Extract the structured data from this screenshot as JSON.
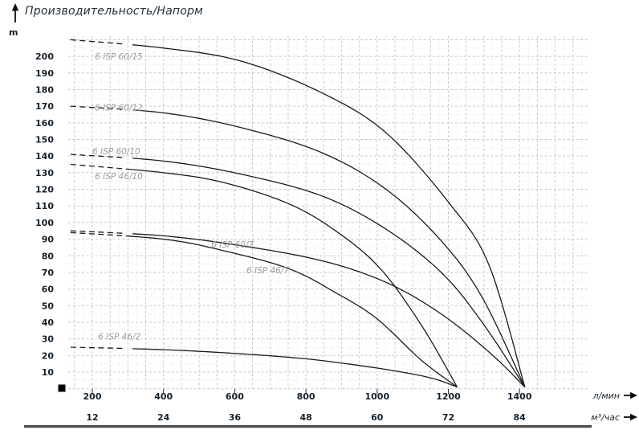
{
  "title": "Производительность/Напорм",
  "y_axis_unit": "m",
  "x_axis_unit_primary": "л/мин",
  "x_axis_unit_secondary": "м³/час",
  "chart_data": {
    "type": "line",
    "title": "Производительность/Напорм",
    "ylabel": "m",
    "xlabel_primary": "л/мин",
    "xlabel_secondary": "м³/час",
    "y_ticks": [
      10,
      20,
      30,
      40,
      50,
      60,
      70,
      80,
      90,
      100,
      110,
      120,
      130,
      140,
      150,
      160,
      170,
      180,
      190,
      200
    ],
    "x_ticks_primary": [
      200,
      400,
      600,
      800,
      1000,
      1200,
      1400
    ],
    "x_ticks_secondary": [
      12,
      24,
      36,
      48,
      60,
      72,
      84
    ],
    "ylim": [
      0,
      212
    ],
    "xlim_primary": [
      132,
      1592
    ],
    "grid": "light dashed major every 10 m / 50 l-min, dotted minor every 5 m / 25 l-min",
    "legend_position": "inline italic labels on curves",
    "dash_until_lmin": 300,
    "series": [
      {
        "name": "6 ISP 60/15",
        "points": [
          [
            139,
            210
          ],
          [
            400,
            205
          ],
          [
            620,
            197
          ],
          [
            845,
            178
          ],
          [
            1025,
            154
          ],
          [
            1205,
            111
          ],
          [
            1315,
            74
          ],
          [
            1415,
            1
          ]
        ],
        "label_at": [
          207,
          198
        ]
      },
      {
        "name": "6 ISP 60/12",
        "points": [
          [
            139,
            170
          ],
          [
            400,
            166
          ],
          [
            620,
            157
          ],
          [
            845,
            142
          ],
          [
            1025,
            120
          ],
          [
            1180,
            89
          ],
          [
            1295,
            55
          ],
          [
            1415,
            1
          ]
        ],
        "label_at": [
          207,
          167.5
        ]
      },
      {
        "name": "6 ISP 60/10",
        "points": [
          [
            139,
            141
          ],
          [
            400,
            137
          ],
          [
            620,
            129
          ],
          [
            845,
            116
          ],
          [
            1025,
            96
          ],
          [
            1180,
            70
          ],
          [
            1295,
            40
          ],
          [
            1415,
            1
          ]
        ],
        "label_at": [
          200,
          141
        ]
      },
      {
        "name": "6 ISP 46/10",
        "points": [
          [
            139,
            135
          ],
          [
            400,
            130
          ],
          [
            570,
            124
          ],
          [
            755,
            111
          ],
          [
            890,
            94
          ],
          [
            1010,
            72
          ],
          [
            1125,
            38
          ],
          [
            1225,
            1
          ]
        ],
        "label_at": [
          207,
          126
        ]
      },
      {
        "name": "6 ISP 60/7",
        "points": [
          [
            139,
            95
          ],
          [
            400,
            92
          ],
          [
            620,
            86
          ],
          [
            845,
            77
          ],
          [
            1025,
            64
          ],
          [
            1180,
            45
          ],
          [
            1320,
            21
          ],
          [
            1415,
            1
          ]
        ],
        "label_at": [
          534,
          85
        ]
      },
      {
        "name": "6 ISP 46/7",
        "points": [
          [
            139,
            94
          ],
          [
            400,
            90
          ],
          [
            570,
            83
          ],
          [
            755,
            72
          ],
          [
            890,
            57
          ],
          [
            1000,
            42
          ],
          [
            1125,
            17
          ],
          [
            1225,
            1
          ]
        ],
        "label_at": [
          633,
          69.5
        ]
      },
      {
        "name": "6 ISP 46/2",
        "points": [
          [
            139,
            25
          ],
          [
            400,
            23.5
          ],
          [
            620,
            21
          ],
          [
            800,
            18
          ],
          [
            950,
            14
          ],
          [
            1070,
            10
          ],
          [
            1160,
            6
          ],
          [
            1225,
            1
          ]
        ],
        "label_at": [
          216,
          29.5
        ]
      }
    ]
  },
  "colors": {
    "curve": "#1b1b1b",
    "curve_label": "#9b9b9b",
    "grid_major": "#c7c7c7",
    "grid_minor": "#e7e7e7",
    "tick_text": "#13202b",
    "title_text": "#24303b",
    "bottom_bar": "#4d4d4d",
    "marker": "#000000",
    "arrow": "#0d0d0d"
  }
}
